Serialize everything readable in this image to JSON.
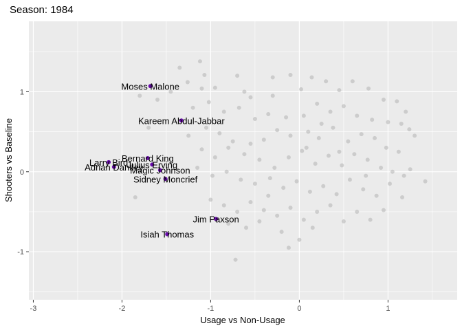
{
  "title": "Season: 1984",
  "chart_data": {
    "type": "scatter",
    "title": "Season: 1984",
    "xlabel": "Usage vs Non-Usage",
    "ylabel": "Shooters vs Baseline",
    "xlim": [
      -3.05,
      1.78
    ],
    "ylim": [
      -1.6,
      1.88
    ],
    "x_ticks": [
      -3,
      -2,
      -1,
      0,
      1
    ],
    "x_tick_labels": [
      "-3",
      "-2",
      "-1",
      "0",
      "1"
    ],
    "y_ticks": [
      -1,
      0,
      1
    ],
    "y_tick_labels": [
      "-1",
      "0",
      "1"
    ],
    "grid": true,
    "colors": {
      "panel_background": "#ebebeb",
      "grid_major": "#ffffff",
      "background_point": "#b3b3b3",
      "highlight_point": "#6a0dad"
    },
    "highlighted_points": [
      {
        "label": "Moses Malone",
        "x": -1.68,
        "y": 1.07
      },
      {
        "label": "Kareem Abdul-Jabbar",
        "x": -1.33,
        "y": 0.64
      },
      {
        "label": "Bernard King",
        "x": -1.71,
        "y": 0.17
      },
      {
        "label": "Larry Bird",
        "x": -2.15,
        "y": 0.12
      },
      {
        "label": "Julius Erving",
        "x": -1.66,
        "y": 0.09
      },
      {
        "label": "Adrian Dantley",
        "x": -2.09,
        "y": 0.06
      },
      {
        "label": "Magic Johnson",
        "x": -1.57,
        "y": 0.02
      },
      {
        "label": "Sidney Moncrief",
        "x": -1.51,
        "y": -0.09
      },
      {
        "label": "Jim Paxson",
        "x": -0.94,
        "y": -0.59
      },
      {
        "label": "Isiah Thomas",
        "x": -1.49,
        "y": -0.78
      }
    ],
    "background_points": [
      [
        -1.12,
        1.38
      ],
      [
        -1.07,
        1.21
      ],
      [
        -1.35,
        1.3
      ],
      [
        -1.1,
        1.04
      ],
      [
        -1.26,
        1.12
      ],
      [
        -0.95,
        1.05
      ],
      [
        -0.7,
        1.2
      ],
      [
        -0.62,
        1.0
      ],
      [
        -0.55,
        0.93
      ],
      [
        -0.3,
        1.18
      ],
      [
        -0.1,
        1.21
      ],
      [
        0.02,
        1.03
      ],
      [
        0.14,
        1.18
      ],
      [
        0.3,
        1.13
      ],
      [
        0.45,
        1.02
      ],
      [
        0.6,
        1.13
      ],
      [
        0.78,
        1.04
      ],
      [
        0.95,
        0.9
      ],
      [
        1.1,
        0.88
      ],
      [
        1.2,
        0.75
      ],
      [
        -1.45,
        1.0
      ],
      [
        -1.6,
        0.9
      ],
      [
        -1.02,
        0.87
      ],
      [
        -1.2,
        0.8
      ],
      [
        -0.85,
        0.75
      ],
      [
        -0.68,
        0.8
      ],
      [
        -0.5,
        0.66
      ],
      [
        -0.35,
        0.72
      ],
      [
        -0.15,
        0.68
      ],
      [
        0.05,
        0.7
      ],
      [
        0.2,
        0.85
      ],
      [
        0.35,
        0.75
      ],
      [
        0.5,
        0.82
      ],
      [
        0.65,
        0.7
      ],
      [
        0.82,
        0.65
      ],
      [
        1.0,
        0.62
      ],
      [
        1.15,
        0.6
      ],
      [
        1.24,
        0.53
      ],
      [
        -1.05,
        0.55
      ],
      [
        -0.9,
        0.48
      ],
      [
        -0.75,
        0.38
      ],
      [
        -0.55,
        0.35
      ],
      [
        -0.4,
        0.4
      ],
      [
        -0.25,
        0.52
      ],
      [
        -0.1,
        0.45
      ],
      [
        0.08,
        0.3
      ],
      [
        0.22,
        0.42
      ],
      [
        0.38,
        0.55
      ],
      [
        0.55,
        0.38
      ],
      [
        0.7,
        0.47
      ],
      [
        0.85,
        0.42
      ],
      [
        0.98,
        0.3
      ],
      [
        1.12,
        0.25
      ],
      [
        -1.25,
        0.45
      ],
      [
        -1.1,
        0.28
      ],
      [
        -0.95,
        0.18
      ],
      [
        -0.8,
        0.3
      ],
      [
        -0.62,
        0.22
      ],
      [
        -0.45,
        0.15
      ],
      [
        -0.28,
        0.05
      ],
      [
        -0.12,
        0.18
      ],
      [
        0.03,
        0.26
      ],
      [
        0.18,
        0.1
      ],
      [
        0.33,
        0.2
      ],
      [
        0.48,
        0.08
      ],
      [
        0.62,
        0.22
      ],
      [
        0.77,
        0.15
      ],
      [
        0.92,
        0.05
      ],
      [
        1.05,
        0.0
      ],
      [
        1.18,
        -0.05
      ],
      [
        1.25,
        0.03
      ],
      [
        -1.15,
        0.05
      ],
      [
        -0.98,
        -0.05
      ],
      [
        -0.82,
        0.0
      ],
      [
        -0.66,
        -0.1
      ],
      [
        -0.5,
        -0.15
      ],
      [
        -0.33,
        -0.08
      ],
      [
        -0.18,
        -0.2
      ],
      [
        -0.03,
        -0.12
      ],
      [
        0.12,
        -0.25
      ],
      [
        0.27,
        -0.18
      ],
      [
        0.42,
        -0.28
      ],
      [
        0.57,
        -0.1
      ],
      [
        0.72,
        -0.22
      ],
      [
        0.87,
        -0.3
      ],
      [
        1.02,
        -0.15
      ],
      [
        1.16,
        -0.32
      ],
      [
        -1.0,
        -0.35
      ],
      [
        -0.85,
        -0.42
      ],
      [
        -0.7,
        -0.5
      ],
      [
        -0.55,
        -0.38
      ],
      [
        -0.4,
        -0.48
      ],
      [
        -0.25,
        -0.55
      ],
      [
        -0.1,
        -0.45
      ],
      [
        0.05,
        -0.6
      ],
      [
        0.2,
        -0.5
      ],
      [
        0.35,
        -0.42
      ],
      [
        0.5,
        -0.62
      ],
      [
        0.65,
        -0.5
      ],
      [
        0.8,
        -0.6
      ],
      [
        0.95,
        -0.48
      ],
      [
        -0.8,
        -0.65
      ],
      [
        -0.6,
        -0.7
      ],
      [
        -0.45,
        -0.62
      ],
      [
        -0.2,
        -0.75
      ],
      [
        0.0,
        -0.85
      ],
      [
        0.15,
        -0.7
      ],
      [
        -0.72,
        -1.1
      ],
      [
        -0.12,
        -0.95
      ],
      [
        -1.85,
        -0.32
      ],
      [
        -1.8,
        0.95
      ],
      [
        -1.7,
        0.55
      ],
      [
        1.42,
        -0.12
      ],
      [
        1.3,
        0.45
      ],
      [
        -0.3,
        0.95
      ],
      [
        0.25,
        0.6
      ],
      [
        0.45,
        0.25
      ],
      [
        0.75,
        -0.05
      ],
      [
        -0.35,
        -0.3
      ],
      [
        0.1,
        0.5
      ]
    ]
  }
}
